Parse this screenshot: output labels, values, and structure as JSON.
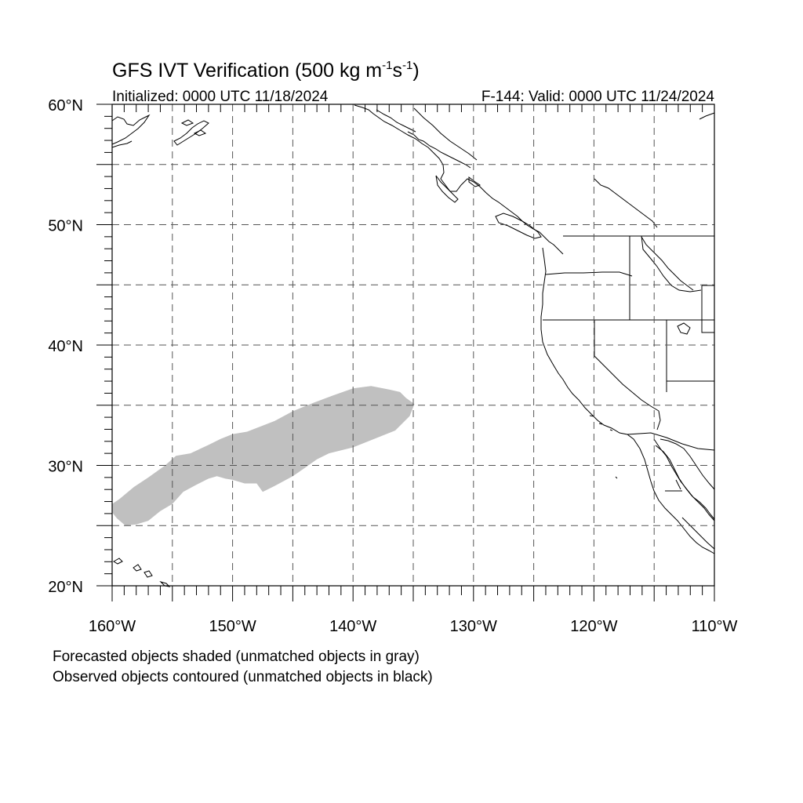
{
  "title": {
    "main": "GFS IVT Verification (500 kg m",
    "sup1": "-1",
    "mid": "s",
    "sup2": "-1",
    "end": ")"
  },
  "initialized": "Initialized: 0000 UTC 11/18/2024",
  "valid": "F-144: Valid: 0000 UTC 11/24/2024",
  "axes": {
    "lon_range": [
      -160,
      -110
    ],
    "lat_range": [
      20,
      60
    ],
    "lon_labels": [
      {
        "value": -160,
        "text": "160°W"
      },
      {
        "value": -150,
        "text": "150°W"
      },
      {
        "value": -140,
        "text": "140°W"
      },
      {
        "value": -130,
        "text": "130°W"
      },
      {
        "value": -120,
        "text": "120°W"
      },
      {
        "value": -110,
        "text": "110°W"
      }
    ],
    "lat_labels": [
      {
        "value": 60,
        "text": "60°N"
      },
      {
        "value": 50,
        "text": "50°N"
      },
      {
        "value": 40,
        "text": "40°N"
      },
      {
        "value": 30,
        "text": "30°N"
      },
      {
        "value": 20,
        "text": "20°N"
      }
    ],
    "gridline_interval_deg": 5
  },
  "colors": {
    "forecast_unmatched": "#c0c0c0",
    "grid": "#555555",
    "coast": "#000000"
  },
  "forecast_object": {
    "status": "unmatched",
    "outline_lonlat": [
      [
        -160.0,
        26.1
      ],
      [
        -159.6,
        25.6
      ],
      [
        -158.9,
        25.0
      ],
      [
        -158.0,
        25.1
      ],
      [
        -157.0,
        25.4
      ],
      [
        -156.0,
        26.2
      ],
      [
        -155.0,
        26.8
      ],
      [
        -154.1,
        27.8
      ],
      [
        -153.0,
        28.4
      ],
      [
        -152.0,
        28.9
      ],
      [
        -151.3,
        29.1
      ],
      [
        -150.6,
        28.9
      ],
      [
        -150.0,
        28.8
      ],
      [
        -149.0,
        28.5
      ],
      [
        -148.0,
        28.5
      ],
      [
        -147.5,
        27.8
      ],
      [
        -146.5,
        28.3
      ],
      [
        -145.0,
        29.1
      ],
      [
        -144.0,
        29.8
      ],
      [
        -143.0,
        30.5
      ],
      [
        -142.0,
        31.0
      ],
      [
        -140.0,
        31.5
      ],
      [
        -138.0,
        32.3
      ],
      [
        -136.5,
        32.9
      ],
      [
        -135.3,
        34.1
      ],
      [
        -134.9,
        35.1
      ],
      [
        -135.6,
        35.6
      ],
      [
        -136.1,
        36.1
      ],
      [
        -137.0,
        36.3
      ],
      [
        -138.5,
        36.6
      ],
      [
        -140.0,
        36.4
      ],
      [
        -141.7,
        35.8
      ],
      [
        -143.3,
        35.2
      ],
      [
        -145.0,
        34.5
      ],
      [
        -146.5,
        33.7
      ],
      [
        -147.5,
        33.3
      ],
      [
        -148.8,
        32.8
      ],
      [
        -150.0,
        32.6
      ],
      [
        -151.0,
        32.2
      ],
      [
        -152.0,
        31.7
      ],
      [
        -153.5,
        31.0
      ],
      [
        -154.7,
        30.8
      ],
      [
        -155.6,
        30.0
      ],
      [
        -157.0,
        29.0
      ],
      [
        -158.2,
        28.2
      ],
      [
        -159.4,
        27.2
      ],
      [
        -160.0,
        26.8
      ]
    ]
  },
  "caption": {
    "line1": "Forecasted objects shaded (unmatched objects in gray)",
    "line2": "Observed objects contoured (unmatched objects in black)"
  }
}
